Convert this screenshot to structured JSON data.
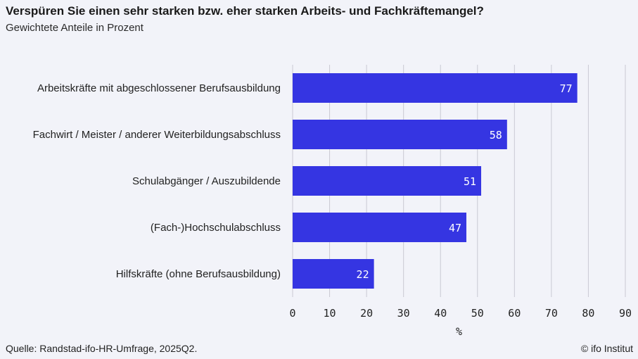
{
  "header": {
    "title": "Verspüren Sie einen sehr starken bzw. eher starken Arbeits- und Fachkräftemangel?",
    "subtitle": "Gewichtete Anteile in Prozent"
  },
  "footer": {
    "source": "Quelle: Randstad-ifo-HR-Umfrage, 2025Q2.",
    "credit": "© ifo Institut"
  },
  "colors": {
    "bar": "#3535e2",
    "grid": "#c9c9d3",
    "background": "#f2f3f9"
  },
  "chart_data": {
    "type": "bar",
    "orientation": "horizontal",
    "title": "Verspüren Sie einen sehr starken bzw. eher starken Arbeits- und Fachkräftemangel?",
    "subtitle": "Gewichtete Anteile in Prozent",
    "categories": [
      "Arbeitskräfte mit abgeschlossener Berufsausbildung",
      "Fachwirt / Meister / anderer Weiterbildungsabschluss",
      "Schulabgänger / Auszubildende",
      "(Fach-)Hochschulabschluss",
      "Hilfskräfte (ohne Berufsausbildung)"
    ],
    "values": [
      77,
      58,
      51,
      47,
      22
    ],
    "xlabel": "%",
    "ylabel": "",
    "xlim": [
      0,
      90
    ],
    "xticks": [
      0,
      10,
      20,
      30,
      40,
      50,
      60,
      70,
      80,
      90
    ],
    "grid": "vertical",
    "data_labels": "inside-end"
  }
}
